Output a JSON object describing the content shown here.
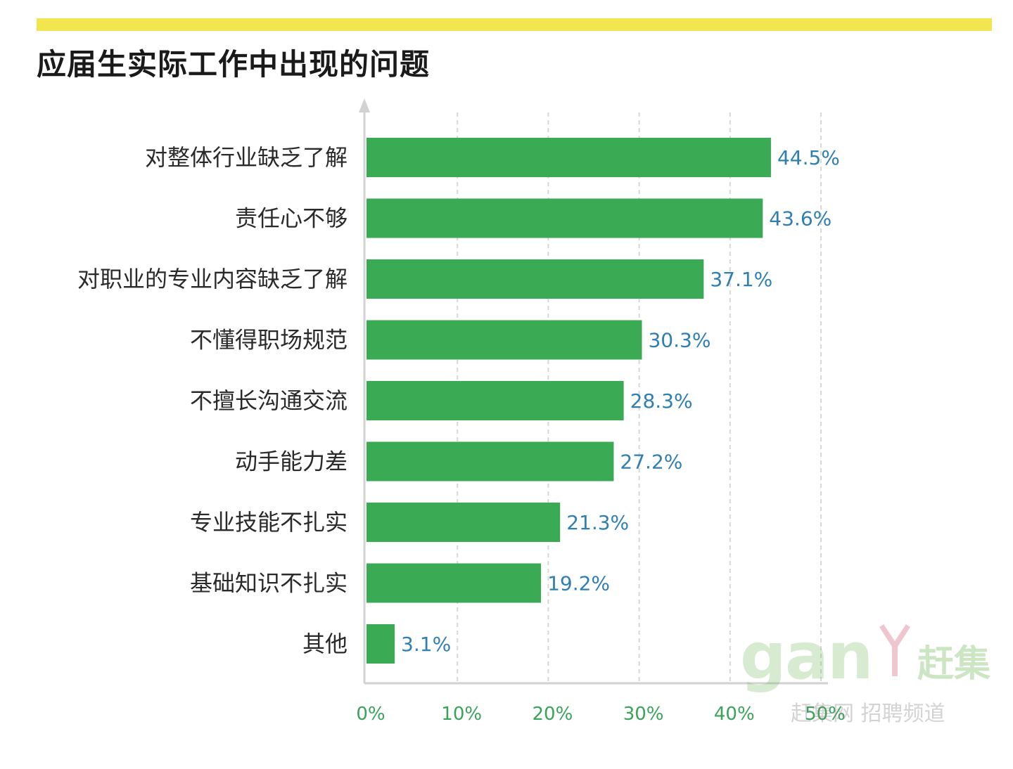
{
  "header": {
    "title": "应届生实际工作中出现的问题"
  },
  "colors": {
    "bar": "#3aaa55",
    "top_bar": "#f2e650",
    "value_label": "#2f7fb3",
    "tick_label": "#3aa35a",
    "grid": "#d7d7d7"
  },
  "chart_data": {
    "type": "bar",
    "orientation": "horizontal",
    "title": "应届生实际工作中出现的问题",
    "categories": [
      "对整体行业缺乏了解",
      "责任心不够",
      "对职业的专业内容缺乏了解",
      "不懂得职场规范",
      "不擅长沟通交流",
      "动手能力差",
      "专业技能不扎实",
      "基础知识不扎实",
      "其他"
    ],
    "values": [
      44.5,
      43.6,
      37.1,
      30.3,
      28.3,
      27.2,
      21.3,
      19.2,
      3.1
    ],
    "value_labels": [
      "44.5%",
      "43.6%",
      "37.1%",
      "30.3%",
      "28.3%",
      "27.2%",
      "21.3%",
      "19.2%",
      "3.1%"
    ],
    "x_ticks": [
      "0%",
      "10%",
      "20%",
      "30%",
      "40%",
      "50%"
    ],
    "xlim": [
      0,
      50
    ],
    "xlabel": "",
    "ylabel": "",
    "grid": "vertical dashed",
    "legend": "none"
  },
  "watermark": {
    "logo_text": "gan",
    "logo_cn": "赶集",
    "subtitle": "赶集网 招聘频道"
  }
}
